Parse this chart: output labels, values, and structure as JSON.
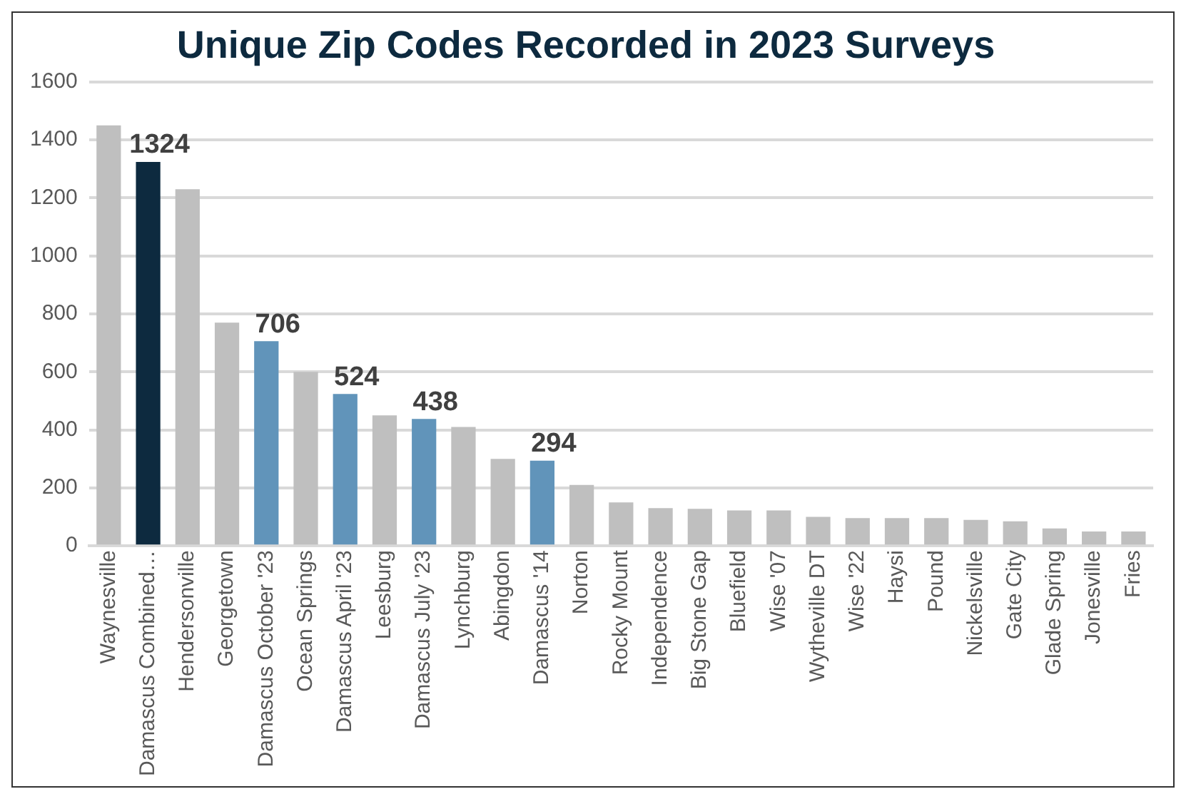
{
  "chart_data": {
    "type": "bar",
    "title": "Unique Zip Codes Recorded in 2023 Surveys",
    "categories": [
      "Waynesville",
      "Damascus Combined…",
      "Hendersonville",
      "Georgetown",
      "Damascus October '23",
      "Ocean Springs",
      "Damascus April '23",
      "Leesburg",
      "Damascus July '23",
      "Lynchburg",
      "Abingdon",
      "Damascus '14",
      "Norton",
      "Rocky Mount",
      "Independence",
      "Big Stone Gap",
      "Bluefield",
      "Wise '07",
      "Wytheville DT",
      "Wise '22",
      "Haysi",
      "Pound",
      "Nickelsville",
      "Gate City",
      "Glade Spring",
      "Jonesville",
      "Fries"
    ],
    "values": [
      1450,
      1324,
      1230,
      770,
      706,
      600,
      524,
      450,
      438,
      410,
      300,
      294,
      210,
      150,
      130,
      128,
      122,
      122,
      100,
      96,
      96,
      96,
      90,
      85,
      60,
      50,
      50
    ],
    "colors": [
      "#bfbfbf",
      "#0d2a3f",
      "#bfbfbf",
      "#bfbfbf",
      "#6194ba",
      "#bfbfbf",
      "#6194ba",
      "#bfbfbf",
      "#6194ba",
      "#bfbfbf",
      "#bfbfbf",
      "#6194ba",
      "#bfbfbf",
      "#bfbfbf",
      "#bfbfbf",
      "#bfbfbf",
      "#bfbfbf",
      "#bfbfbf",
      "#bfbfbf",
      "#bfbfbf",
      "#bfbfbf",
      "#bfbfbf",
      "#bfbfbf",
      "#bfbfbf",
      "#bfbfbf",
      "#bfbfbf",
      "#bfbfbf"
    ],
    "value_labels": [
      null,
      "1324",
      null,
      null,
      "706",
      null,
      "524",
      null,
      "438",
      null,
      null,
      "294",
      null,
      null,
      null,
      null,
      null,
      null,
      null,
      null,
      null,
      null,
      null,
      null,
      null,
      null,
      null
    ],
    "ylim": [
      0,
      1600
    ],
    "yticks": [
      0,
      200,
      400,
      600,
      800,
      1000,
      1200,
      1400,
      1600
    ],
    "grid": "y",
    "legend": false
  }
}
